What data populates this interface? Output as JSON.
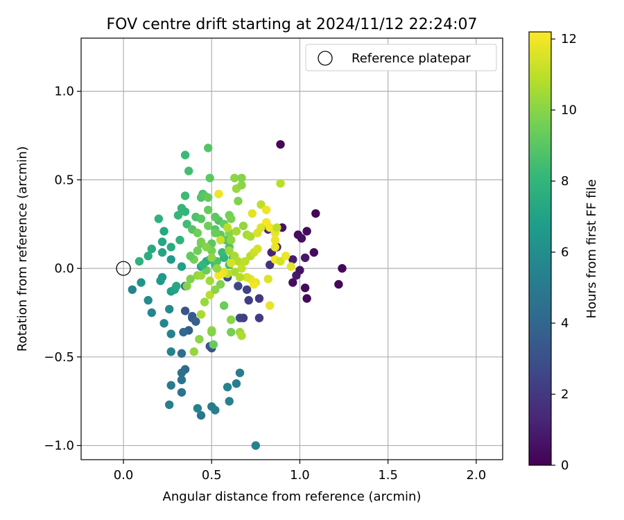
{
  "chart_data": {
    "type": "scatter",
    "title": "FOV centre drift starting at 2024/11/12 22:24:07",
    "xlabel": "Angular distance from reference (arcmin)",
    "ylabel": "Rotation from reference (arcmin)",
    "xlim": [
      -0.24,
      2.15
    ],
    "ylim": [
      -1.08,
      1.3
    ],
    "xticks": [
      0.0,
      0.5,
      1.0,
      1.5,
      2.0
    ],
    "xtick_labels": [
      "0.0",
      "0.5",
      "1.0",
      "1.5",
      "2.0"
    ],
    "yticks": [
      -1.0,
      -0.5,
      0.0,
      0.5,
      1.0
    ],
    "ytick_labels": [
      "−1.0",
      "−0.5",
      "0.0",
      "0.5",
      "1.0"
    ],
    "grid": true,
    "legend": {
      "placement": "top-right",
      "entries": [
        "Reference platepar"
      ]
    },
    "reference": {
      "label": "Reference platepar",
      "x": 0.0,
      "y": 0.0,
      "marker": "open-circle"
    },
    "colorbar": {
      "label": "Hours from first FF file",
      "colormap": "viridis",
      "range": [
        0,
        12.2
      ],
      "ticks": [
        0,
        2,
        4,
        6,
        8,
        10,
        12
      ],
      "tick_labels": [
        "0",
        "2",
        "4",
        "6",
        "8",
        "10",
        "12"
      ]
    },
    "colors": {
      "viridis": [
        "#440154",
        "#482878",
        "#3e4a89",
        "#31688e",
        "#26828e",
        "#1f9e89",
        "#35b779",
        "#6ece58",
        "#b5de2b",
        "#fde725"
      ],
      "grid": "#b0b0b0",
      "axes": "#000000"
    },
    "points": [
      [
        0.89,
        0.7,
        0.2
      ],
      [
        1.09,
        0.31,
        0.2
      ],
      [
        1.04,
        0.21,
        0.3
      ],
      [
        1.08,
        0.09,
        0.3
      ],
      [
        0.99,
        0.19,
        0.4
      ],
      [
        1.01,
        0.17,
        0.5
      ],
      [
        1.24,
        0.0,
        0.2
      ],
      [
        1.22,
        -0.09,
        0.2
      ],
      [
        1.03,
        -0.11,
        0.3
      ],
      [
        1.04,
        -0.17,
        0.3
      ],
      [
        0.96,
        -0.08,
        0.5
      ],
      [
        1.03,
        0.06,
        0.8
      ],
      [
        0.96,
        0.05,
        1.0
      ],
      [
        0.98,
        -0.04,
        0.8
      ],
      [
        1.0,
        -0.01,
        0.6
      ],
      [
        0.9,
        0.23,
        0.6
      ],
      [
        0.87,
        0.12,
        1.0
      ],
      [
        0.84,
        0.09,
        1.2
      ],
      [
        0.82,
        0.22,
        1.4
      ],
      [
        0.83,
        0.02,
        1.7
      ],
      [
        0.77,
        -0.17,
        2.0
      ],
      [
        0.71,
        -0.18,
        2.2
      ],
      [
        0.77,
        -0.28,
        2.1
      ],
      [
        0.7,
        -0.12,
        2.4
      ],
      [
        0.66,
        -0.28,
        2.7
      ],
      [
        0.68,
        -0.28,
        2.3
      ],
      [
        0.65,
        -0.1,
        2.6
      ],
      [
        0.59,
        -0.05,
        2.9
      ],
      [
        0.5,
        -0.45,
        3.0
      ],
      [
        0.49,
        -0.44,
        3.2
      ],
      [
        0.35,
        -0.24,
        3.2
      ],
      [
        0.39,
        -0.27,
        3.5
      ],
      [
        0.39,
        -0.28,
        3.4
      ],
      [
        0.41,
        -0.3,
        3.7
      ],
      [
        0.37,
        -0.35,
        3.6
      ],
      [
        0.34,
        -0.36,
        4.1
      ],
      [
        0.35,
        -0.1,
        4.0
      ],
      [
        0.33,
        -0.48,
        4.4
      ],
      [
        0.35,
        -0.57,
        4.2
      ],
      [
        0.33,
        -0.59,
        4.5
      ],
      [
        0.33,
        -0.63,
        4.7
      ],
      [
        0.33,
        -0.7,
        4.6
      ],
      [
        0.27,
        -0.66,
        5.0
      ],
      [
        0.26,
        -0.77,
        5.2
      ],
      [
        0.27,
        -0.47,
        5.3
      ],
      [
        0.27,
        -0.37,
        5.4
      ],
      [
        0.23,
        -0.31,
        5.6
      ],
      [
        0.26,
        -0.23,
        5.8
      ],
      [
        0.44,
        -0.83,
        4.8
      ],
      [
        0.42,
        -0.79,
        5.3
      ],
      [
        0.5,
        -0.78,
        5.0
      ],
      [
        0.52,
        -0.8,
        5.2
      ],
      [
        0.6,
        -0.75,
        5.3
      ],
      [
        0.59,
        -0.67,
        5.4
      ],
      [
        0.64,
        -0.65,
        5.2
      ],
      [
        0.66,
        -0.59,
        5.1
      ],
      [
        0.75,
        -1.0,
        5.4
      ],
      [
        0.05,
        -0.12,
        5.5
      ],
      [
        0.16,
        -0.25,
        5.6
      ],
      [
        0.14,
        -0.18,
        5.9
      ],
      [
        0.1,
        -0.08,
        6.3
      ],
      [
        0.21,
        -0.07,
        6.5
      ],
      [
        0.22,
        -0.05,
        6.6
      ],
      [
        0.27,
        -0.13,
        6.8
      ],
      [
        0.29,
        -0.12,
        7.0
      ],
      [
        0.3,
        -0.1,
        7.3
      ],
      [
        0.27,
        0.05,
        6.6
      ],
      [
        0.22,
        0.09,
        7.1
      ],
      [
        0.16,
        0.11,
        7.4
      ],
      [
        0.14,
        0.07,
        7.6
      ],
      [
        0.09,
        0.04,
        7.8
      ],
      [
        0.22,
        0.15,
        7.2
      ],
      [
        0.23,
        0.21,
        7.3
      ],
      [
        0.2,
        0.28,
        7.8
      ],
      [
        0.27,
        0.12,
        7.5
      ],
      [
        0.33,
        0.01,
        6.9
      ],
      [
        0.32,
        0.16,
        7.8
      ],
      [
        0.35,
        0.32,
        8.0
      ],
      [
        0.33,
        0.34,
        8.1
      ],
      [
        0.31,
        0.3,
        8.1
      ],
      [
        0.35,
        0.41,
        8.3
      ],
      [
        0.37,
        0.55,
        8.5
      ],
      [
        0.35,
        0.64,
        8.3
      ],
      [
        0.48,
        0.68,
        8.9
      ],
      [
        0.49,
        0.51,
        9.1
      ],
      [
        0.45,
        0.42,
        8.6
      ],
      [
        0.44,
        0.4,
        8.8
      ],
      [
        0.46,
        0.41,
        9.0
      ],
      [
        0.48,
        0.4,
        9.2
      ],
      [
        0.41,
        0.29,
        8.7
      ],
      [
        0.44,
        0.28,
        9.0
      ],
      [
        0.48,
        0.33,
        9.3
      ],
      [
        0.48,
        0.24,
        9.5
      ],
      [
        0.52,
        0.22,
        8.9
      ],
      [
        0.5,
        0.14,
        9.1
      ],
      [
        0.44,
        0.14,
        9.3
      ],
      [
        0.42,
        0.1,
        9.5
      ],
      [
        0.4,
        0.05,
        9.6
      ],
      [
        0.38,
        0.07,
        9.2
      ],
      [
        0.38,
        -0.06,
        9.8
      ],
      [
        0.36,
        -0.1,
        9.9
      ],
      [
        0.42,
        -0.04,
        10.2
      ],
      [
        0.44,
        -0.04,
        10.4
      ],
      [
        0.44,
        0.01,
        7.0
      ],
      [
        0.47,
        0.04,
        7.4
      ],
      [
        0.49,
        0.05,
        7.8
      ],
      [
        0.52,
        0.02,
        8.3
      ],
      [
        0.53,
        0.04,
        8.7
      ],
      [
        0.57,
        0.06,
        7.9
      ],
      [
        0.56,
        0.09,
        8.2
      ],
      [
        0.6,
        0.02,
        8.4
      ],
      [
        0.62,
        0.06,
        8.6
      ],
      [
        0.6,
        0.12,
        8.8
      ],
      [
        0.58,
        0.16,
        9.0
      ],
      [
        0.55,
        0.19,
        9.2
      ],
      [
        0.52,
        0.2,
        9.4
      ],
      [
        0.5,
        0.1,
        9.6
      ],
      [
        0.54,
        0.27,
        8.8
      ],
      [
        0.52,
        0.29,
        9.1
      ],
      [
        0.57,
        0.25,
        9.3
      ],
      [
        0.6,
        0.3,
        9.5
      ],
      [
        0.61,
        0.28,
        9.7
      ],
      [
        0.63,
        0.51,
        10.1
      ],
      [
        0.67,
        0.51,
        9.9
      ],
      [
        0.64,
        0.45,
        10.3
      ],
      [
        0.67,
        0.47,
        10.0
      ],
      [
        0.65,
        0.38,
        9.8
      ],
      [
        0.68,
        0.24,
        10.2
      ],
      [
        0.7,
        0.19,
        10.5
      ],
      [
        0.72,
        0.18,
        10.7
      ],
      [
        0.6,
        0.2,
        9.9
      ],
      [
        0.61,
        0.16,
        10.1
      ],
      [
        0.6,
        0.1,
        10.4
      ],
      [
        0.63,
        0.07,
        10.6
      ],
      [
        0.65,
        0.04,
        10.8
      ],
      [
        0.69,
        0.04,
        11.0
      ],
      [
        0.72,
        0.07,
        10.9
      ],
      [
        0.74,
        0.09,
        11.2
      ],
      [
        0.76,
        0.11,
        11.4
      ],
      [
        0.76,
        0.2,
        11.5
      ],
      [
        0.78,
        0.36,
        11.0
      ],
      [
        0.73,
        0.31,
        11.7
      ],
      [
        0.81,
        0.33,
        11.9
      ],
      [
        0.81,
        0.26,
        12.1
      ],
      [
        0.83,
        0.23,
        12.0
      ],
      [
        0.78,
        0.23,
        11.6
      ],
      [
        0.86,
        0.2,
        11.8
      ],
      [
        0.87,
        0.23,
        11.0
      ],
      [
        0.89,
        0.48,
        10.9
      ],
      [
        0.54,
        0.42,
        11.9
      ],
      [
        0.86,
        0.16,
        11.9
      ],
      [
        0.86,
        0.12,
        11.8
      ],
      [
        0.86,
        0.05,
        12.0
      ],
      [
        0.89,
        0.04,
        11.4
      ],
      [
        0.92,
        0.07,
        11.9
      ],
      [
        0.95,
        0.01,
        11.7
      ],
      [
        0.82,
        -0.06,
        11.6
      ],
      [
        0.83,
        -0.21,
        11.8
      ],
      [
        0.75,
        -0.08,
        11.7
      ],
      [
        0.74,
        -0.09,
        12.0
      ],
      [
        0.72,
        -0.06,
        11.8
      ],
      [
        0.7,
        -0.05,
        11.5
      ],
      [
        0.66,
        -0.05,
        10.8
      ],
      [
        0.67,
        0.0,
        11.1
      ],
      [
        0.63,
        -0.02,
        10.6
      ],
      [
        0.61,
        0.03,
        11.4
      ],
      [
        0.59,
        -0.03,
        11.0
      ],
      [
        0.57,
        -0.02,
        11.6
      ],
      [
        0.56,
        -0.03,
        11.9
      ],
      [
        0.54,
        -0.04,
        12.1
      ],
      [
        0.53,
        0.0,
        10.2
      ],
      [
        0.55,
        0.16,
        11.2
      ],
      [
        0.59,
        0.23,
        10.9
      ],
      [
        0.64,
        0.21,
        10.5
      ],
      [
        0.49,
        -0.15,
        10.9
      ],
      [
        0.46,
        -0.19,
        10.3
      ],
      [
        0.44,
        -0.26,
        10.6
      ],
      [
        0.5,
        -0.35,
        10.2
      ],
      [
        0.5,
        -0.36,
        9.9
      ],
      [
        0.51,
        -0.43,
        9.3
      ],
      [
        0.43,
        -0.4,
        10.0
      ],
      [
        0.4,
        -0.47,
        10.2
      ],
      [
        0.57,
        -0.21,
        9.4
      ],
      [
        0.61,
        -0.29,
        10.0
      ],
      [
        0.61,
        -0.36,
        9.6
      ],
      [
        0.66,
        -0.36,
        10.4
      ],
      [
        0.67,
        -0.38,
        10.7
      ],
      [
        0.55,
        -0.09,
        9.8
      ],
      [
        0.52,
        -0.12,
        10.0
      ],
      [
        0.49,
        -0.07,
        10.5
      ],
      [
        0.47,
        -0.01,
        9.4
      ],
      [
        0.45,
        0.02,
        8.1
      ],
      [
        0.36,
        0.25,
        8.4
      ],
      [
        0.39,
        0.22,
        8.9
      ],
      [
        0.42,
        0.2,
        9.5
      ],
      [
        0.44,
        0.15,
        9.7
      ],
      [
        0.47,
        0.12,
        9.9
      ],
      [
        0.5,
        0.06,
        10.1
      ]
    ]
  }
}
